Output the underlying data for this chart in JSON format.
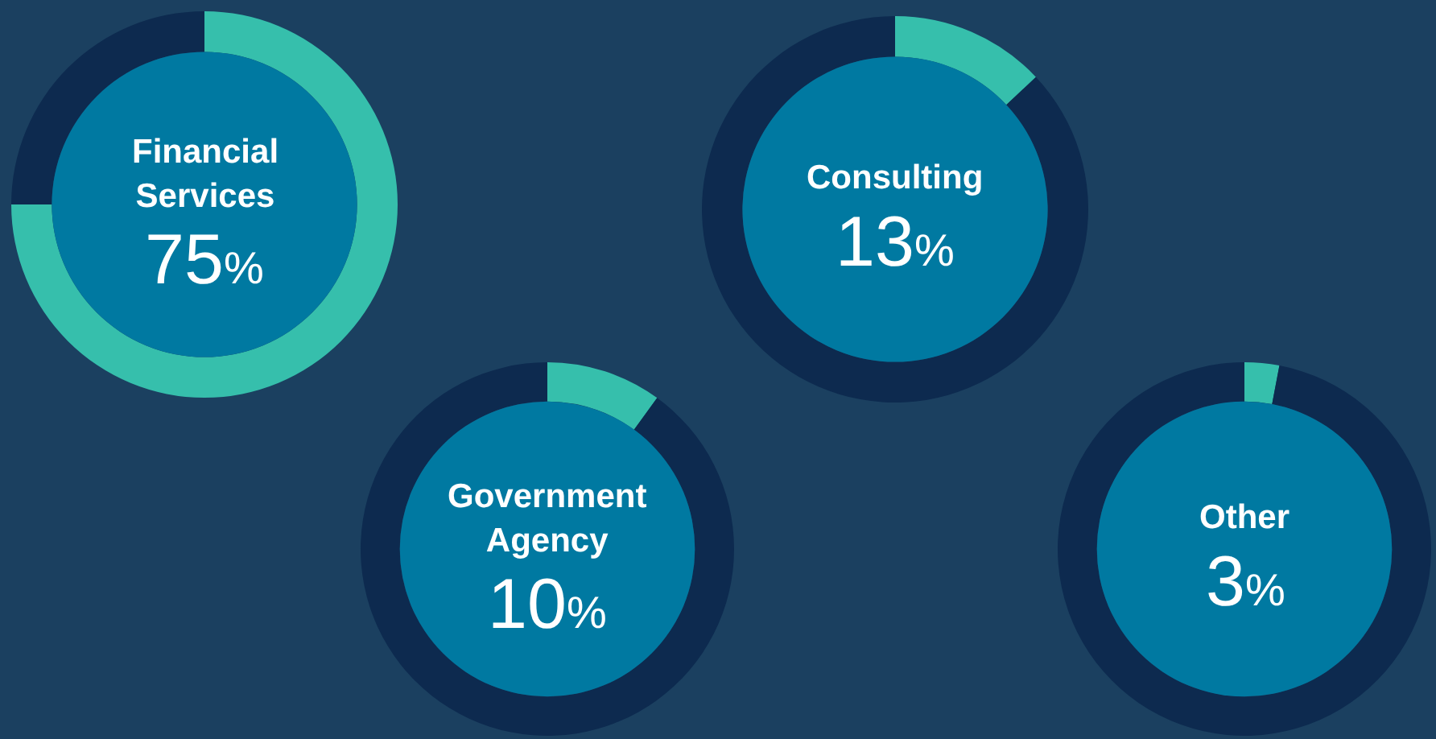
{
  "chart_data": [
    {
      "type": "donut",
      "categories": [
        "Financial Services",
        null
      ],
      "values": [
        75,
        25
      ],
      "colors": [
        "#36bfac",
        "#0d2a4f"
      ],
      "value_labels": [
        "75%",
        null
      ]
    },
    {
      "type": "donut",
      "categories": [
        "Consulting",
        null
      ],
      "values": [
        13,
        87
      ],
      "colors": [
        "#36bfac",
        "#0d2a4f"
      ],
      "value_labels": [
        "13%",
        null
      ]
    },
    {
      "type": "donut",
      "categories": [
        "Government Agency",
        null
      ],
      "values": [
        10,
        90
      ],
      "colors": [
        "#36bfac",
        "#0d2a4f"
      ],
      "value_labels": [
        "10%",
        null
      ]
    },
    {
      "type": "donut",
      "categories": [
        "Other",
        null
      ],
      "values": [
        3,
        97
      ],
      "colors": [
        "#36bfac",
        "#0d2a4f"
      ],
      "value_labels": [
        "3%",
        null
      ]
    }
  ]
}
